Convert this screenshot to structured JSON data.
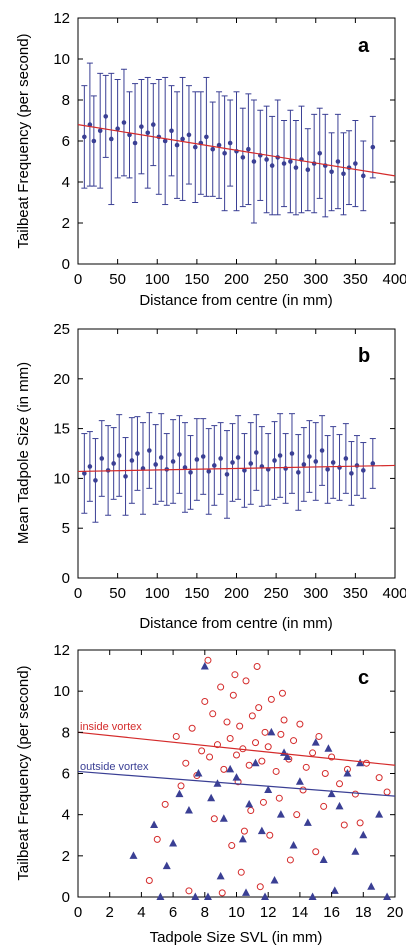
{
  "chart_data": [
    {
      "type": "scatter",
      "panel_label": "a",
      "xlabel": "Distance from centre (in mm)",
      "ylabel": "Tailbeat Frequency (per second)",
      "xlim": [
        0,
        400
      ],
      "ylim": [
        0,
        12
      ],
      "xticks": [
        0,
        50,
        100,
        150,
        200,
        250,
        300,
        350,
        400
      ],
      "yticks": [
        0,
        2,
        4,
        6,
        8,
        10,
        12
      ],
      "grid": false,
      "points_with_error_bars": {
        "x": [
          8,
          15,
          20,
          28,
          35,
          42,
          50,
          58,
          65,
          72,
          80,
          88,
          95,
          102,
          110,
          118,
          125,
          132,
          140,
          148,
          155,
          162,
          170,
          178,
          185,
          192,
          200,
          208,
          215,
          222,
          230,
          238,
          245,
          252,
          260,
          268,
          275,
          282,
          290,
          298,
          305,
          312,
          320,
          328,
          335,
          342,
          350,
          360,
          372
        ],
        "y": [
          6.2,
          6.8,
          6.0,
          6.5,
          7.2,
          6.1,
          6.6,
          6.9,
          6.3,
          5.9,
          6.7,
          6.4,
          6.8,
          6.2,
          6.0,
          6.5,
          5.8,
          6.1,
          6.3,
          5.7,
          5.9,
          6.2,
          5.6,
          5.8,
          5.4,
          5.9,
          5.5,
          5.2,
          5.6,
          5.0,
          5.3,
          5.1,
          4.8,
          5.2,
          4.9,
          5.0,
          4.7,
          5.1,
          4.6,
          4.9,
          5.4,
          4.8,
          4.5,
          5.0,
          4.4,
          4.7,
          4.9,
          4.3,
          5.7
        ],
        "err": [
          2.5,
          3.0,
          2.2,
          2.8,
          2.0,
          3.2,
          2.4,
          2.6,
          2.1,
          2.9,
          2.3,
          2.7,
          2.0,
          2.8,
          3.1,
          2.2,
          2.6,
          3.0,
          2.4,
          2.7,
          2.5,
          2.9,
          2.3,
          2.6,
          2.8,
          2.1,
          2.9,
          2.4,
          2.7,
          3.0,
          2.2,
          2.6,
          2.4,
          2.8,
          2.1,
          2.5,
          2.3,
          2.6,
          2.0,
          2.4,
          2.2,
          2.5,
          1.9,
          2.3,
          2.0,
          1.8,
          2.1,
          1.7,
          1.5
        ]
      },
      "trend_line": {
        "x": [
          0,
          400
        ],
        "y": [
          6.8,
          4.3
        ]
      }
    },
    {
      "type": "scatter",
      "panel_label": "b",
      "xlabel": "Distance from centre (in mm)",
      "ylabel": "Mean Tadpole Size (in mm)",
      "xlim": [
        0,
        400
      ],
      "ylim": [
        0,
        25
      ],
      "xticks": [
        0,
        50,
        100,
        150,
        200,
        250,
        300,
        350,
        400
      ],
      "yticks": [
        0,
        5,
        10,
        15,
        20,
        25
      ],
      "grid": false,
      "points_with_error_bars": {
        "x": [
          8,
          15,
          22,
          30,
          38,
          45,
          52,
          60,
          68,
          75,
          82,
          90,
          98,
          105,
          112,
          120,
          128,
          135,
          142,
          150,
          158,
          165,
          172,
          180,
          188,
          195,
          202,
          210,
          218,
          225,
          232,
          240,
          248,
          255,
          262,
          270,
          278,
          285,
          292,
          300,
          308,
          315,
          322,
          330,
          338,
          345,
          352,
          360,
          372
        ],
        "y": [
          10.5,
          11.2,
          9.8,
          12.0,
          10.8,
          11.5,
          12.3,
          10.2,
          11.8,
          12.5,
          11.0,
          12.8,
          11.4,
          12.1,
          10.9,
          11.7,
          12.4,
          11.1,
          10.6,
          11.9,
          12.2,
          10.7,
          11.3,
          12.0,
          10.4,
          11.6,
          12.1,
          10.8,
          11.5,
          12.6,
          11.2,
          10.9,
          11.8,
          12.3,
          11.0,
          12.5,
          10.6,
          11.4,
          12.2,
          11.7,
          12.8,
          10.9,
          11.6,
          11.1,
          12.0,
          10.5,
          11.3,
          10.8,
          11.5
        ],
        "err": [
          4.0,
          3.5,
          4.2,
          3.8,
          4.5,
          3.6,
          4.1,
          3.9,
          4.3,
          3.7,
          4.6,
          3.8,
          4.0,
          4.4,
          3.6,
          4.2,
          3.9,
          4.5,
          3.7,
          4.1,
          3.8,
          4.3,
          4.0,
          3.6,
          4.4,
          3.9,
          4.2,
          3.7,
          4.1,
          3.8,
          4.0,
          3.6,
          3.9,
          4.2,
          3.5,
          4.0,
          3.8,
          3.7,
          3.6,
          3.9,
          3.5,
          3.4,
          3.6,
          3.3,
          3.5,
          3.2,
          3.0,
          2.8,
          2.5
        ]
      },
      "trend_line": {
        "x": [
          0,
          400
        ],
        "y": [
          10.7,
          11.3
        ]
      }
    },
    {
      "type": "scatter",
      "panel_label": "c",
      "xlabel": "Tadpole Size SVL (in mm)",
      "ylabel": "Tailbeat Frequency (per second)",
      "xlim": [
        0,
        20
      ],
      "ylim": [
        0,
        12
      ],
      "xticks": [
        0,
        2,
        4,
        6,
        8,
        10,
        12,
        14,
        16,
        18,
        20
      ],
      "yticks": [
        0,
        2,
        4,
        6,
        8,
        10,
        12
      ],
      "grid": false,
      "series": [
        {
          "name": "inside vortex",
          "color": "#d42a2a",
          "marker": "open-circle",
          "x": [
            4.5,
            5.5,
            6.2,
            6.8,
            7.2,
            7.5,
            7.8,
            8.0,
            8.3,
            8.5,
            8.8,
            9.0,
            9.2,
            9.4,
            9.6,
            9.8,
            10.0,
            10.2,
            10.4,
            10.6,
            10.8,
            11.0,
            11.2,
            11.4,
            11.6,
            11.8,
            12.0,
            12.2,
            12.5,
            12.8,
            13.0,
            13.3,
            13.6,
            14.0,
            14.4,
            14.8,
            15.2,
            15.6,
            16.0,
            16.5,
            17.0,
            17.5,
            18.2,
            19.0,
            7.0,
            8.6,
            9.1,
            9.7,
            10.3,
            10.9,
            11.5,
            12.1,
            12.7,
            13.4,
            14.2,
            15.0,
            8.2,
            9.9,
            11.3,
            12.9,
            10.1,
            11.7,
            6.5,
            16.8,
            19.5,
            5.0,
            10.5,
            13.8,
            15.5,
            17.8
          ],
          "y": [
            0.8,
            4.5,
            7.8,
            6.5,
            8.2,
            5.9,
            7.1,
            9.5,
            6.8,
            8.9,
            7.4,
            10.2,
            6.2,
            8.5,
            7.7,
            9.8,
            6.9,
            8.3,
            7.2,
            10.5,
            6.4,
            8.8,
            7.5,
            9.2,
            6.6,
            8.0,
            7.3,
            9.6,
            6.1,
            7.9,
            8.6,
            6.7,
            7.6,
            8.4,
            6.3,
            7.0,
            7.8,
            6.0,
            6.8,
            5.5,
            6.2,
            5.0,
            6.5,
            5.8,
            0.3,
            3.8,
            0.2,
            2.5,
            1.2,
            4.2,
            0.5,
            3.0,
            4.8,
            1.8,
            5.2,
            2.2,
            11.5,
            10.8,
            11.2,
            9.9,
            5.6,
            4.6,
            5.4,
            3.5,
            5.1,
            2.8,
            3.2,
            4.0,
            4.4,
            3.6
          ]
        },
        {
          "name": "outside vortex",
          "color": "#3a3f94",
          "marker": "filled-triangle",
          "x": [
            3.5,
            4.8,
            5.6,
            6.4,
            7.0,
            7.6,
            8.0,
            8.4,
            8.8,
            9.2,
            9.6,
            10.0,
            10.4,
            10.8,
            11.2,
            11.6,
            12.0,
            12.4,
            12.8,
            13.2,
            13.6,
            14.0,
            14.5,
            15.0,
            15.5,
            16.0,
            16.5,
            17.0,
            17.5,
            18.0,
            18.5,
            19.5,
            8.2,
            9.0,
            10.6,
            11.8,
            13.0,
            14.8,
            16.2,
            6.0,
            7.4,
            12.2,
            15.8,
            17.8,
            5.2,
            19.0
          ],
          "y": [
            2.0,
            3.5,
            1.5,
            5.0,
            4.2,
            6.0,
            11.2,
            4.8,
            5.5,
            3.8,
            6.2,
            5.8,
            2.8,
            4.5,
            6.5,
            3.2,
            5.2,
            0.8,
            4.0,
            6.8,
            2.5,
            5.6,
            3.6,
            7.5,
            1.8,
            5.0,
            4.4,
            6.0,
            2.2,
            3.0,
            0.5,
            0.0,
            0.0,
            1.0,
            0.2,
            0.0,
            7.0,
            0.0,
            0.3,
            2.6,
            0.0,
            8.0,
            7.2,
            6.5,
            0.0,
            4.0
          ]
        }
      ],
      "trend_lines": [
        {
          "name": "inside vortex",
          "color": "#d42a2a",
          "x": [
            0,
            20
          ],
          "y": [
            8.0,
            6.4
          ]
        },
        {
          "name": "outside vortex",
          "color": "#3a3f94",
          "x": [
            0,
            20
          ],
          "y": [
            6.1,
            4.9
          ]
        }
      ]
    }
  ],
  "colors": {
    "series_blue": "#3a3f94",
    "trend_red": "#d42a2a",
    "axes": "#000000"
  },
  "labels": {
    "a": "a",
    "b": "b",
    "c": "c",
    "inside_vortex": "inside vortex",
    "outside_vortex": "outside vortex"
  }
}
